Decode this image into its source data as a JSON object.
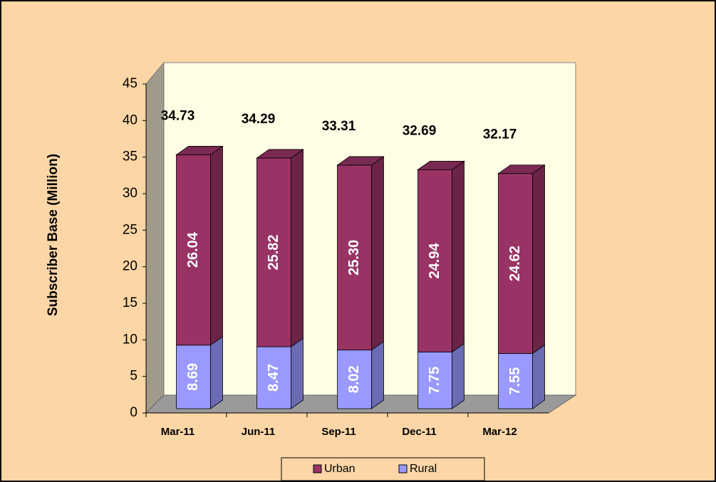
{
  "chart_data": {
    "type": "bar3d_stacked",
    "ylabel": "Subscriber Base (Million)",
    "categories": [
      "Mar-11",
      "Jun-11",
      "Sep-11",
      "Dec-11",
      "Mar-12"
    ],
    "series": [
      {
        "name": "Rural",
        "color": "#9999ff",
        "values": [
          8.69,
          8.47,
          8.02,
          7.75,
          7.55
        ],
        "value_labels": [
          "8.69",
          "8.47",
          "8.02",
          "7.75",
          "7.55"
        ]
      },
      {
        "name": "Urban",
        "color": "#993366",
        "values": [
          26.04,
          25.82,
          25.3,
          24.94,
          24.62
        ],
        "value_labels": [
          "26.04",
          "25.82",
          "25.30",
          "24.94",
          "24.62"
        ]
      }
    ],
    "totals": [
      34.73,
      34.29,
      33.31,
      32.69,
      32.17
    ],
    "ylim": [
      0,
      45
    ],
    "yticks": [
      0,
      5,
      10,
      15,
      20,
      25,
      30,
      35,
      40,
      45
    ],
    "legend": "bottom"
  }
}
